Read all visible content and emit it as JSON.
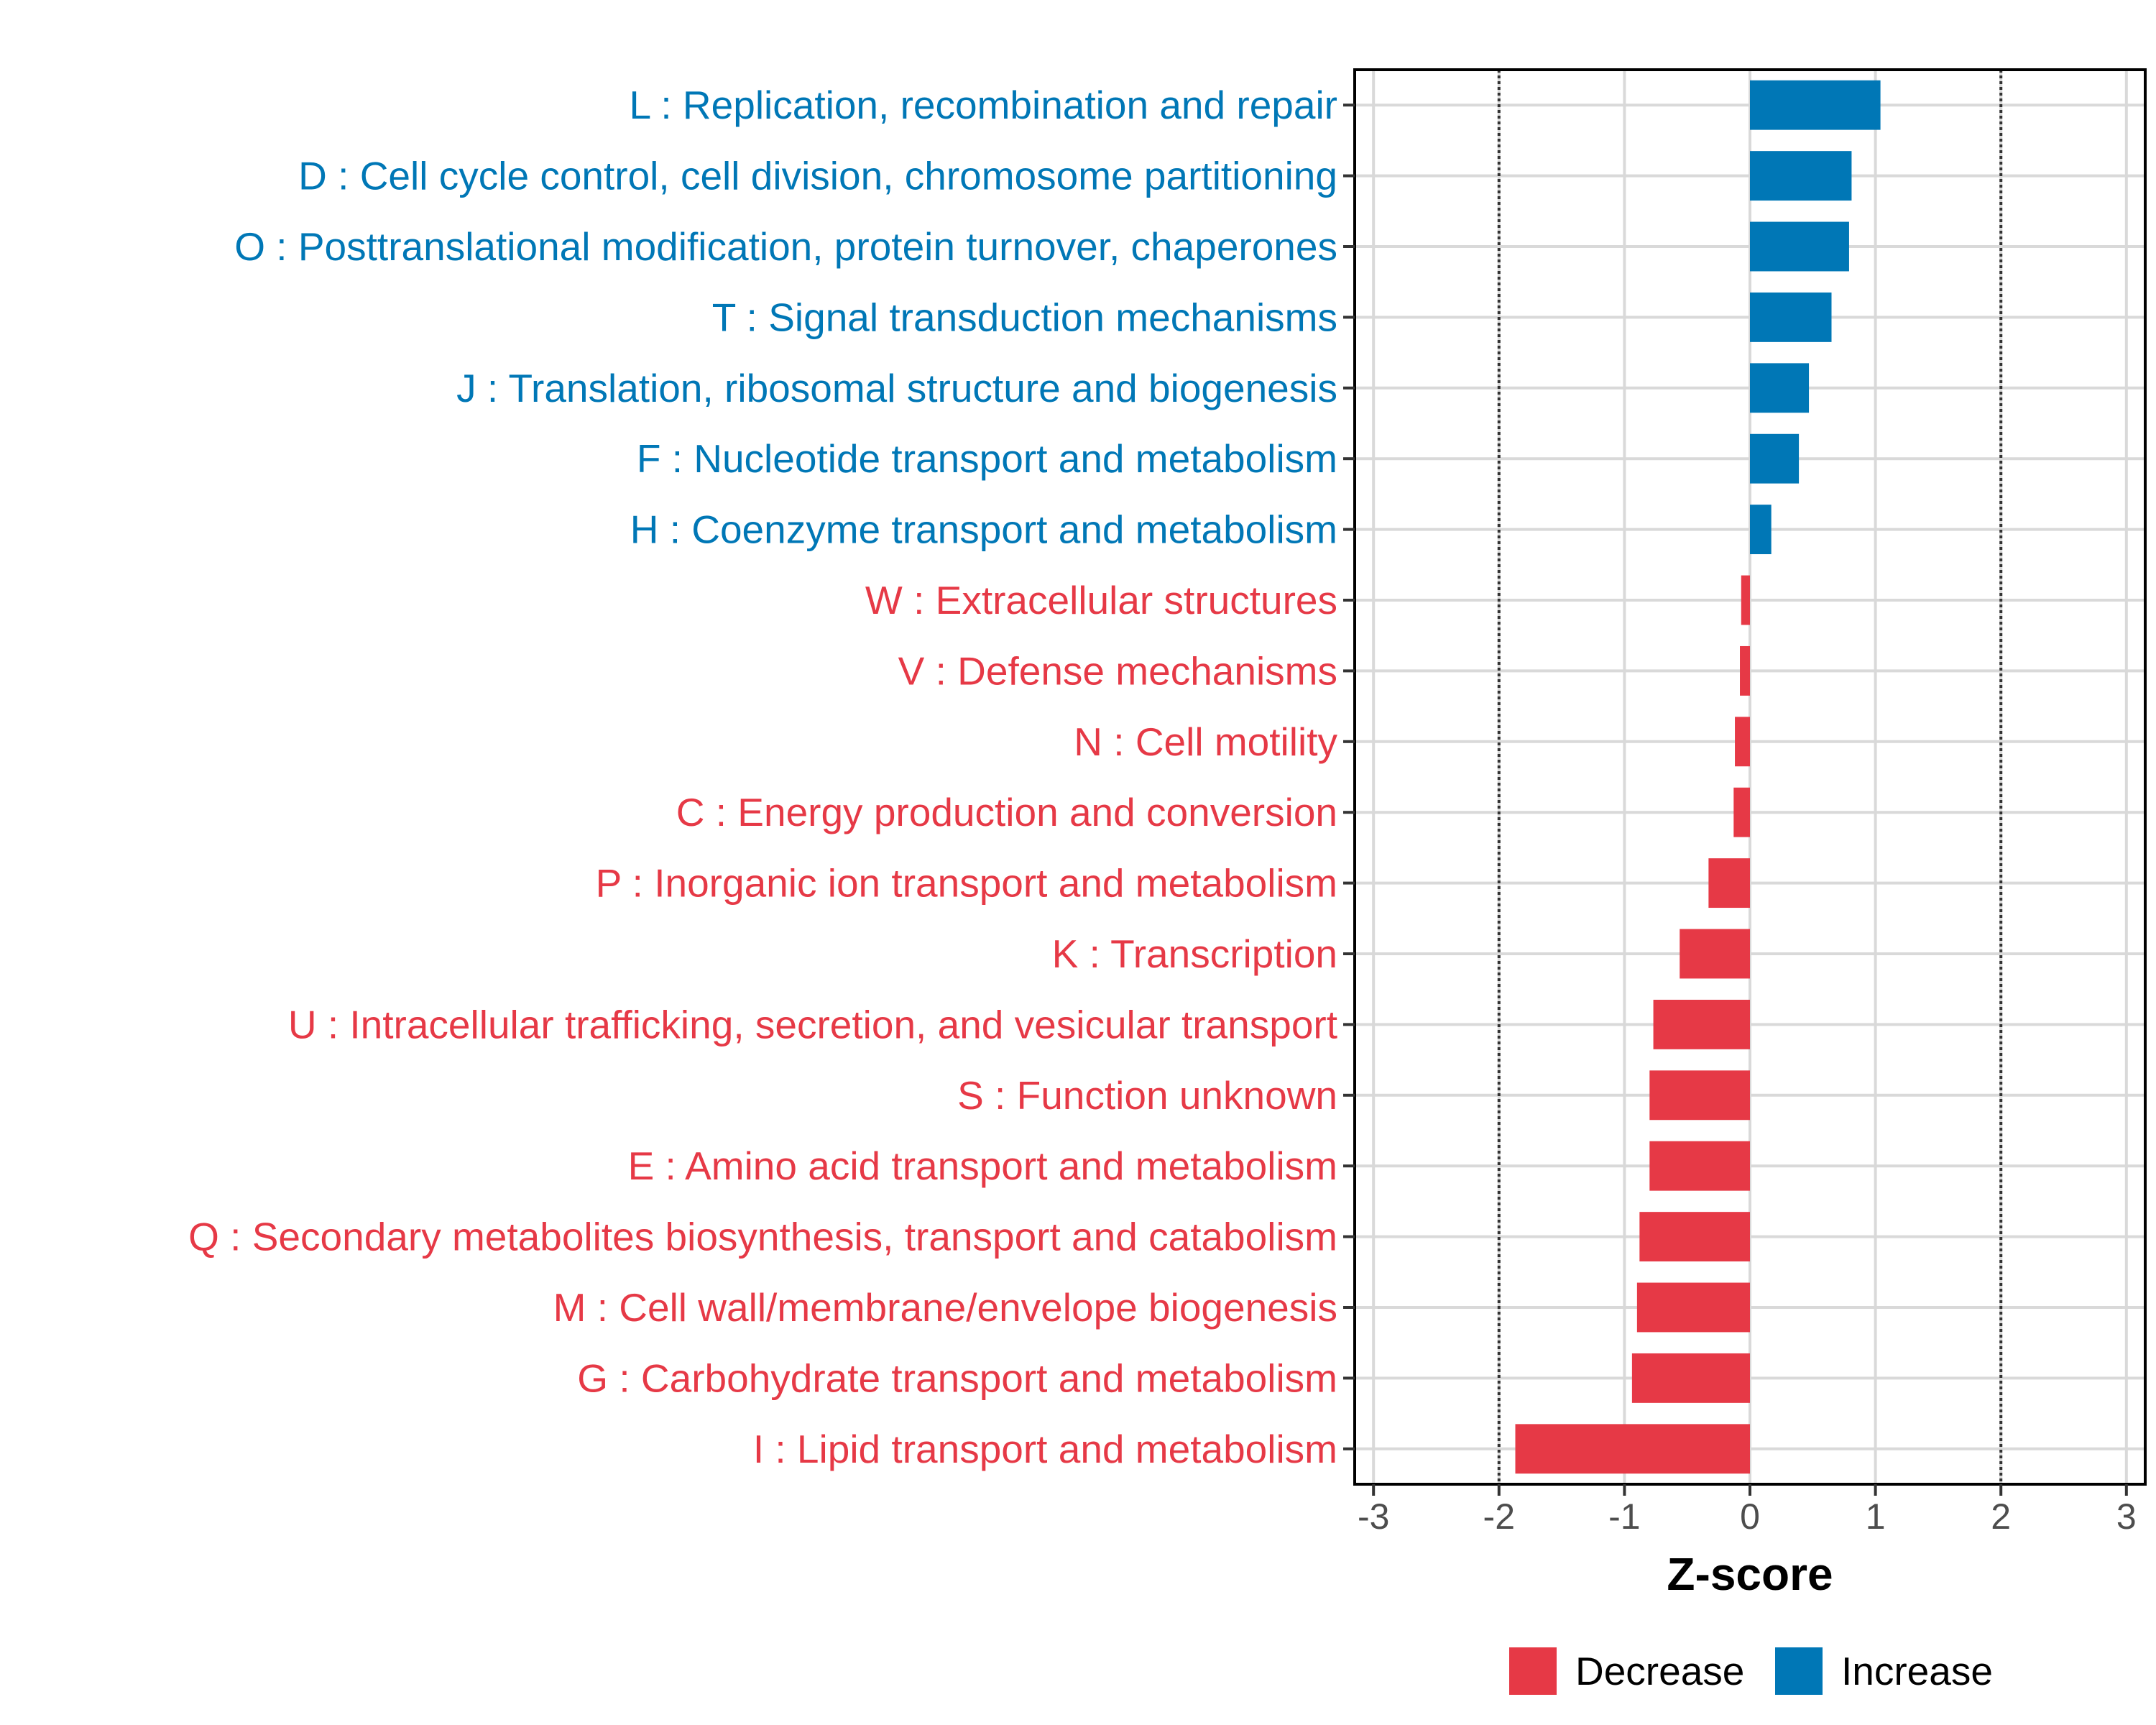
{
  "chart_data": {
    "type": "bar",
    "orientation": "horizontal",
    "xlabel": "Z-score",
    "xlim": [
      -3.15,
      3.15
    ],
    "xticks": [
      -3,
      -2,
      -1,
      0,
      1,
      2,
      3
    ],
    "xtick_labels": [
      "-3",
      "-2",
      "-1",
      "0",
      "1",
      "2",
      "3"
    ],
    "reference_lines": [
      -2,
      2
    ],
    "grid": true,
    "legend_position": "bottom",
    "categories": [
      "L : Replication, recombination and repair",
      "D : Cell cycle control, cell division, chromosome partitioning",
      "O : Posttranslational modification, protein turnover, chaperones",
      "T : Signal transduction mechanisms",
      "J : Translation, ribosomal structure and biogenesis",
      "F : Nucleotide transport and metabolism",
      "H : Coenzyme transport and metabolism",
      "W : Extracellular structures",
      "V : Defense mechanisms",
      "N : Cell motility",
      "C : Energy production and conversion",
      "P : Inorganic ion transport and metabolism",
      "K : Transcription",
      "U : Intracellular trafficking, secretion, and vesicular transport",
      "S : Function unknown",
      "E : Amino acid transport and metabolism",
      "Q : Secondary metabolites biosynthesis, transport and catabolism",
      "M : Cell wall/membrane/envelope biogenesis",
      "G : Carbohydrate transport and metabolism",
      "I : Lipid transport and metabolism"
    ],
    "values": [
      1.04,
      0.81,
      0.79,
      0.65,
      0.47,
      0.39,
      0.17,
      -0.07,
      -0.08,
      -0.12,
      -0.13,
      -0.33,
      -0.56,
      -0.77,
      -0.8,
      -0.8,
      -0.88,
      -0.9,
      -0.94,
      -1.87
    ],
    "groups": [
      "Increase",
      "Increase",
      "Increase",
      "Increase",
      "Increase",
      "Increase",
      "Increase",
      "Decrease",
      "Decrease",
      "Decrease",
      "Decrease",
      "Decrease",
      "Decrease",
      "Decrease",
      "Decrease",
      "Decrease",
      "Decrease",
      "Decrease",
      "Decrease",
      "Decrease"
    ],
    "legend": [
      {
        "name": "Decrease",
        "color": "#e63946"
      },
      {
        "name": "Increase",
        "color": "#0077b6"
      }
    ]
  }
}
